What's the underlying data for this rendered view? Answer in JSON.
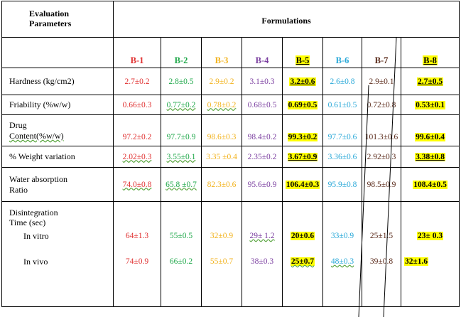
{
  "header": {
    "params_line1": "Evaluation",
    "params_line2": "Parameters",
    "formulations": "Formulations"
  },
  "colors": {
    "b1": "#e03030",
    "b2": "#1fa84a",
    "b3": "#f2b21c",
    "b4": "#7b3fa0",
    "b5": "#000000",
    "b6": "#28a8d8",
    "b7": "#5a2a1a",
    "b8": "#000000",
    "highlight": "#ffff00"
  },
  "columns": [
    "B-1",
    "B-2",
    "B-3",
    "B-4",
    "B-5",
    "B-6",
    "B-7",
    "B-8"
  ],
  "rows": [
    {
      "label": "Hardness  (kg/cm2)",
      "values": [
        "2.7±0.2",
        "2.8±0.5",
        "2.9±0.2",
        "3.1±0.3",
        "3.2±0.6",
        "2.6±0.8",
        "2.9±0.1",
        "2.7±0.5"
      ]
    },
    {
      "label": "Friability (%w/w)",
      "values": [
        "0.66±0.3",
        "0.77±0.2",
        "0.78±0.2",
        "0.68±0.5",
        "0.69±0.5",
        "0.61±0.5",
        "0.72±0.8",
        "0.53±0.1"
      ]
    },
    {
      "label1": "Drug",
      "label2": "Content(%w/w)",
      "values": [
        "97.2±0.2",
        "97.7±0.9",
        "98.6±0.3",
        "98.4±0.2",
        "99.3±0.2",
        "97.7±0.6",
        "101.3±0.6",
        "99.6±0.4"
      ]
    },
    {
      "label": "% Weight variation",
      "values": [
        "2.02±0.3",
        "3.55±0.1",
        "3.35 ±0.4",
        "2.35±0.2",
        "3.67±0.9",
        "3.36±0.6",
        "2.92±0.3",
        "3.38±0.8"
      ]
    },
    {
      "label1": "Water absorption",
      "label2": "Ratio",
      "values": [
        "74.0±0.8",
        "65.8 ±0.7",
        "82.3±0.6",
        "95.6±0.9",
        "106.4±0.3",
        "95.9±0.8",
        "98.5±0.9",
        "108.4±0.5"
      ]
    }
  ],
  "disintegration": {
    "label1": "Disintegration",
    "label2": "Time (sec)",
    "invitro_label": "In vitro",
    "invivo_label": "In vivo",
    "invitro": [
      "64±1.3",
      "55±0.5",
      "32±0.9",
      "29± 1.2",
      "20±0.6",
      "33±0.9",
      "25±1.5",
      "23± 0.3"
    ],
    "invivo": [
      "74±0.9",
      "66±0.2",
      "55±0.7",
      "38±0.3",
      "25±0.7",
      "48±0.3",
      "39±0.8",
      "32±1.6"
    ]
  }
}
